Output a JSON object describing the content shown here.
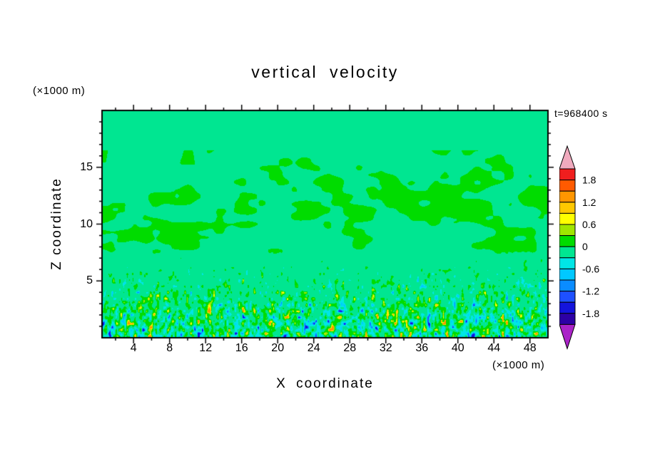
{
  "title": "vertical velocity",
  "time_label": "t=968400 s",
  "axes": {
    "x_label": "X coordinate",
    "x_unit": "(×1000 m)",
    "y_label": "Z coordinate",
    "y_unit": "(×1000 m)",
    "x_ticks": [
      "4",
      "8",
      "12",
      "16",
      "20",
      "24",
      "28",
      "32",
      "36",
      "40",
      "44",
      "48"
    ],
    "x_minor_step": 2,
    "x_range": [
      0.5,
      50
    ],
    "y_ticks": [
      "5",
      "10",
      "15"
    ],
    "y_minor_step": 1,
    "y_range": [
      0,
      20
    ]
  },
  "chart_data": {
    "type": "heatmap",
    "title": "vertical velocity",
    "xlabel": "X coordinate (×1000 m)",
    "ylabel": "Z coordinate (×1000 m)",
    "xlim": [
      0.5,
      50
    ],
    "ylim": [
      0,
      20
    ],
    "time_annotation": "t=968400 s",
    "grid": false,
    "legend_position": "right-colorbar",
    "colorbar": {
      "tick_labels": [
        "1.8",
        "1.2",
        "0.6",
        "0",
        "-0.6",
        "-1.2",
        "-1.8"
      ],
      "band_levels": [
        -2.1,
        -1.8,
        -1.5,
        -1.2,
        -0.9,
        -0.6,
        -0.3,
        0,
        0.3,
        0.6,
        0.9,
        1.2,
        1.5,
        1.8,
        2.1
      ],
      "colors_low_to_high": [
        "#aa23c8",
        "#2d00a5",
        "#1414dc",
        "#1e50ff",
        "#0a8cff",
        "#00c8ff",
        "#00e6e6",
        "#00e691",
        "#00dc00",
        "#a0e600",
        "#ffff00",
        "#ffc800",
        "#ff9600",
        "#ff5a00",
        "#f01e1e",
        "#f0aabe"
      ],
      "under_arrow_color": "#aa23c8",
      "over_arrow_color": "#f0aabe"
    },
    "field": {
      "description": "Vertical cross-section of simulated vertical velocity at t=968400 s. Background is near-zero, slightly negative (spring-green band -0.3 to 0) everywhere. Patchy weak updrafts (0 to 0.3, green) are scattered between z ≈ 7 and z ≈ 17 (×1000 m), densest around z ≈ 10–14, absent near the top of the domain. Below z ≈ 8 there is fine-scale, vertically elongated convective turbulence whose intensity increases toward the surface, with small strong updraft flecks (yellow/orange, ~0.6 to 1.5) and downdraft flecks (cyan/blue, ~ -1.5 to -0.6).",
      "background_band": [
        -0.3,
        0
      ],
      "upper_patch_zone_z": [
        7,
        17
      ],
      "upper_patch_peak_z": 12,
      "turbulence_zone_z": [
        0,
        8
      ],
      "value_clamp": [
        -1.4,
        1.4
      ],
      "noise_seed": 7
    }
  }
}
